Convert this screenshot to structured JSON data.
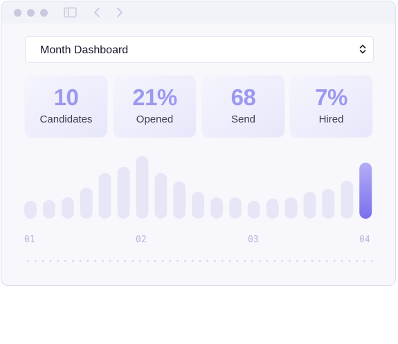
{
  "window": {
    "controls": [
      "window-dot",
      "window-dot",
      "window-dot"
    ],
    "toolbar_icons": [
      "sidebar-toggle-icon",
      "back-chevron-icon",
      "forward-chevron-icon"
    ]
  },
  "dashboard_select": {
    "value": "Month Dashboard",
    "icon": "updown-chevron-icon"
  },
  "stats": [
    {
      "value": "10",
      "label": "Candidates"
    },
    {
      "value": "21%",
      "label": "Opened"
    },
    {
      "value": "68",
      "label": "Send"
    },
    {
      "value": "7%",
      "label": "Hired"
    }
  ],
  "colors": {
    "accent": "#8f86f2",
    "accent_dark": "#7b70ee",
    "bar_inactive": "#e7e6f6",
    "stat_value": "#9c98ee",
    "tick_label": "#b4b3dc"
  },
  "chart_data": {
    "type": "bar",
    "values": [
      26,
      27,
      31,
      45,
      66,
      75,
      91,
      66,
      54,
      39,
      31,
      31,
      26,
      29,
      31,
      39,
      43,
      55,
      81
    ],
    "highlighted_index": 18,
    "x_ticks": [
      "01",
      "02",
      "03",
      "04"
    ],
    "ylim": [
      0,
      100
    ],
    "grid": false
  }
}
